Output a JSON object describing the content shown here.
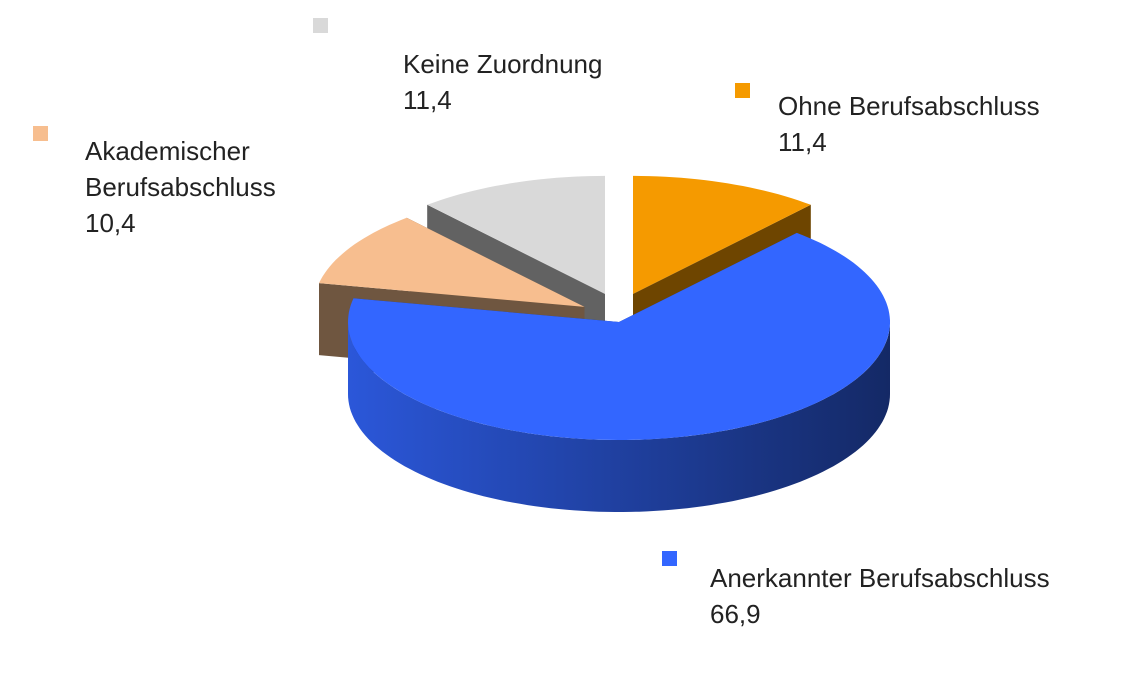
{
  "chart_data": {
    "type": "pie",
    "categories": [
      "Ohne Berufsabschluss",
      "Anerkannter Berufsabschluss",
      "Akademischer Berufsabschluss",
      "Keine Zuordnung"
    ],
    "values": [
      11.4,
      66.9,
      10.4,
      11.4
    ],
    "value_labels": [
      "11,4",
      "66,9",
      "10,4",
      "11,4"
    ],
    "colors": [
      "#f59a00",
      "#3366ff",
      "#f7be8f",
      "#d9d9d9"
    ]
  }
}
